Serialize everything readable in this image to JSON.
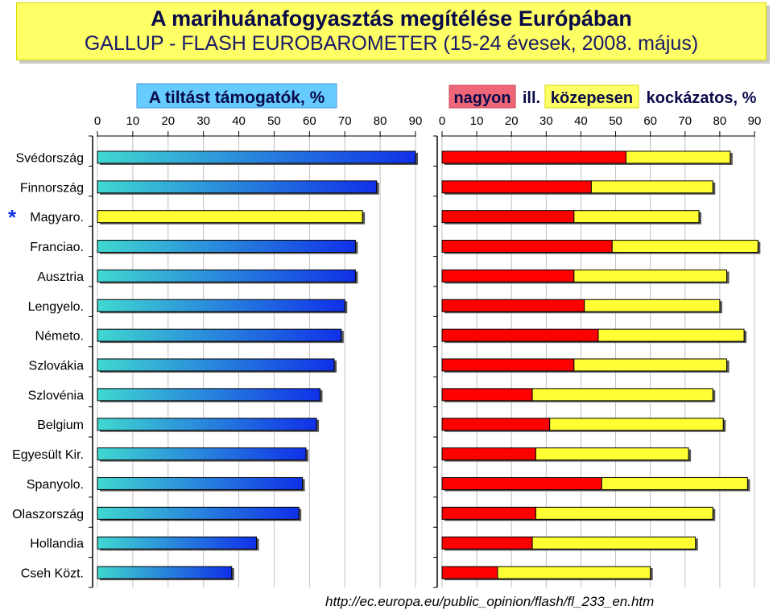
{
  "header": {
    "title": "A marihuánafogyasztás megítélése Európában",
    "subtitle": "GALLUP - FLASH EUROBAROMETER (15-24 évesek, 2008. május)"
  },
  "source_url": "http://ec.europa.eu/public_opinion/flash/fl_233_en.htm",
  "colors": {
    "ban_gradient_start": "#40d8d0",
    "ban_gradient_end": "#1030e8",
    "ban_highlight": "#ffff33",
    "very_risky": "#ff0000",
    "moderately_risky": "#ffff33"
  },
  "chart_data": [
    {
      "type": "bar",
      "orientation": "horizontal",
      "title": "A tiltást támogatók, %",
      "xlim": [
        0,
        90
      ],
      "x_ticks": [
        "0",
        "10",
        "20",
        "30",
        "40",
        "50",
        "60",
        "70",
        "80",
        "90"
      ],
      "categories": [
        "Svédország",
        "Finnország",
        "Magyaro.",
        "Franciao.",
        "Ausztria",
        "Lengyelo.",
        "Németo.",
        "Szlovákia",
        "Szlovénia",
        "Belgium",
        "Egyesült Kir.",
        "Spanyolo.",
        "Olaszország",
        "Hollandia",
        "Cseh Közt."
      ],
      "highlight_category": "Magyaro.",
      "highlight_marker": "*",
      "values": [
        90,
        79,
        75,
        73,
        73,
        70,
        69,
        67,
        63,
        62,
        59,
        58,
        57,
        45,
        38
      ],
      "grid": true
    },
    {
      "type": "bar",
      "orientation": "horizontal",
      "stacked": true,
      "title_parts": {
        "very": "nagyon",
        "or": "ill.",
        "moderately": "közepesen",
        "rest": "kockázatos, %"
      },
      "xlim": [
        0,
        90
      ],
      "x_ticks": [
        "0",
        "10",
        "20",
        "30",
        "40",
        "50",
        "60",
        "70",
        "80",
        "90"
      ],
      "categories": [
        "Svédország",
        "Finnország",
        "Magyaro.",
        "Franciao.",
        "Ausztria",
        "Lengyelo.",
        "Németo.",
        "Szlovákia",
        "Szlovénia",
        "Belgium",
        "Egyesült Kir.",
        "Spanyolo.",
        "Olaszország",
        "Hollandia",
        "Cseh Közt."
      ],
      "series": [
        {
          "name": "nagyon",
          "values": [
            53,
            43,
            38,
            49,
            38,
            41,
            45,
            38,
            26,
            31,
            27,
            46,
            27,
            26,
            16
          ]
        },
        {
          "name": "közepesen",
          "values": [
            30,
            35,
            36,
            42,
            44,
            39,
            42,
            44,
            52,
            50,
            44,
            42,
            51,
            47,
            44
          ]
        }
      ],
      "grid": true
    }
  ]
}
